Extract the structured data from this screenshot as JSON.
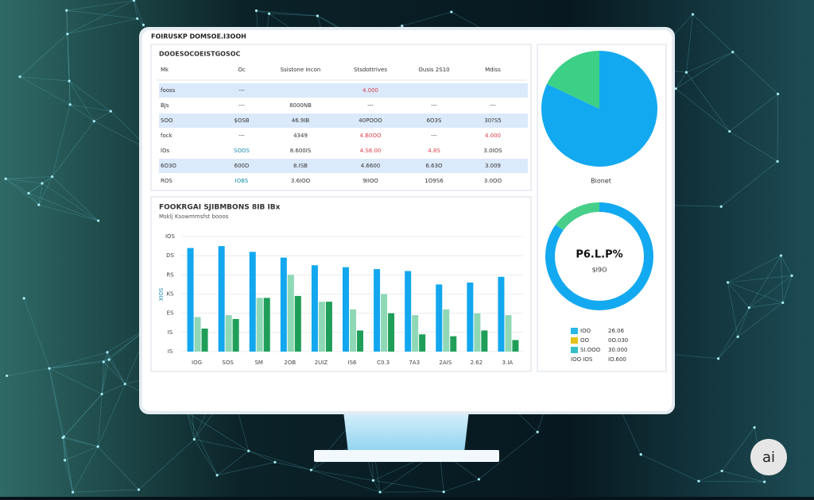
{
  "header": {
    "title": "FOIRUSKP DOMSOE.I3OOH"
  },
  "table": {
    "title": "DOOESOCOEISTGOSOC",
    "highlight_color": "#dbeafb",
    "columns": [
      "Mk",
      "Oc",
      "Ssistone incon",
      "Stsdottrives",
      "Ousis 2S10",
      "Mdiss"
    ],
    "rows": [
      {
        "cells": [
          "fooss",
          "---",
          null,
          "4.000",
          null,
          null
        ],
        "highlight": true,
        "colors": [
          null,
          null,
          null,
          "#d9434b",
          null,
          null
        ]
      },
      {
        "cells": [
          "BJs",
          "---",
          "8000NB",
          "---",
          "---",
          "---"
        ],
        "highlight": false
      },
      {
        "cells": [
          "SOO",
          "$OSB",
          "46.9IB",
          "40POOO",
          "6O3S",
          "30?S5"
        ],
        "highlight": true
      },
      {
        "cells": [
          "fock",
          "---",
          "4349",
          "4.B0OO",
          "---",
          "4.000"
        ],
        "highlight": false,
        "colors": [
          null,
          null,
          null,
          "#d9434b",
          null,
          "#d9434b"
        ]
      },
      {
        "cells": [
          "lOs",
          "SOOS",
          "8.600IS",
          "4.S8.00",
          "4.8S",
          "3.0IOS"
        ],
        "highlight": false,
        "colors": [
          null,
          "#1a8fb0",
          null,
          "#d9434b",
          "#d9434b",
          null
        ]
      },
      {
        "cells": [
          "6O3O",
          "600D",
          "8.ISB",
          "4.6600",
          "6.63O",
          "3.009"
        ],
        "highlight": true
      },
      {
        "cells": [
          "ROS",
          "IOBS",
          "3.6IOO",
          "9IIOO",
          "1O9S6",
          "3.0OO"
        ],
        "highlight": false,
        "colors": [
          null,
          "#1a8fb0",
          null,
          null,
          null,
          null
        ]
      }
    ]
  },
  "bar_chart": {
    "type": "bar",
    "title": "FOOKRGAI SJIBMBONS 8IB IBx",
    "subtitle": "Msklj Ksowmmsfst booos",
    "y_label": "XIOS",
    "categories": [
      "IOG",
      "SOS",
      "SM",
      "2OB",
      "2UIZ",
      "IS6",
      "C0.3",
      "7A3",
      "2AIS",
      "2.62",
      "3.IA"
    ],
    "series": [
      {
        "color": "#12a7ee",
        "values": [
          54,
          55,
          52,
          49,
          45,
          44,
          43,
          42,
          35,
          36,
          39
        ]
      },
      {
        "color": "#8fd8b6",
        "values": [
          18,
          19,
          28,
          40,
          26,
          22,
          30,
          19,
          22,
          20,
          19
        ]
      },
      {
        "color": "#1e9e58",
        "values": [
          12,
          17,
          28,
          29,
          26,
          11,
          20,
          9,
          8,
          11,
          6
        ]
      }
    ],
    "ylim": [
      0,
      60
    ],
    "yticks": [
      {
        "value": 0,
        "label": "IS"
      },
      {
        "value": 10,
        "label": "IS"
      },
      {
        "value": 20,
        "label": "ES"
      },
      {
        "value": 30,
        "label": "KS"
      },
      {
        "value": 40,
        "label": "RS"
      },
      {
        "value": 50,
        "label": "DS"
      },
      {
        "value": 60,
        "label": "IOS"
      }
    ],
    "grid": true
  },
  "pie_chart": {
    "type": "pie",
    "label": "Bionet",
    "values": [
      82,
      18
    ],
    "colors": [
      "#13a9f0",
      "#3ccf86"
    ]
  },
  "donut_chart": {
    "type": "donut",
    "center_value": "P6.L.P%",
    "center_sub": "$I9O",
    "values": [
      85,
      15
    ],
    "colors": [
      "#13a9f0",
      "#47cf8a"
    ]
  },
  "legend": [
    {
      "name": "IOO",
      "value": "26.06",
      "color": "#29b6e8"
    },
    {
      "name": "OO",
      "value": "0O.030",
      "color": "#e6c21a"
    },
    {
      "name": "SI.OOO",
      "value": "30.000",
      "color": "#35c0c8"
    },
    {
      "name": "IOO IOS",
      "value": "IO.600",
      "color": null
    }
  ],
  "badge": "ai"
}
